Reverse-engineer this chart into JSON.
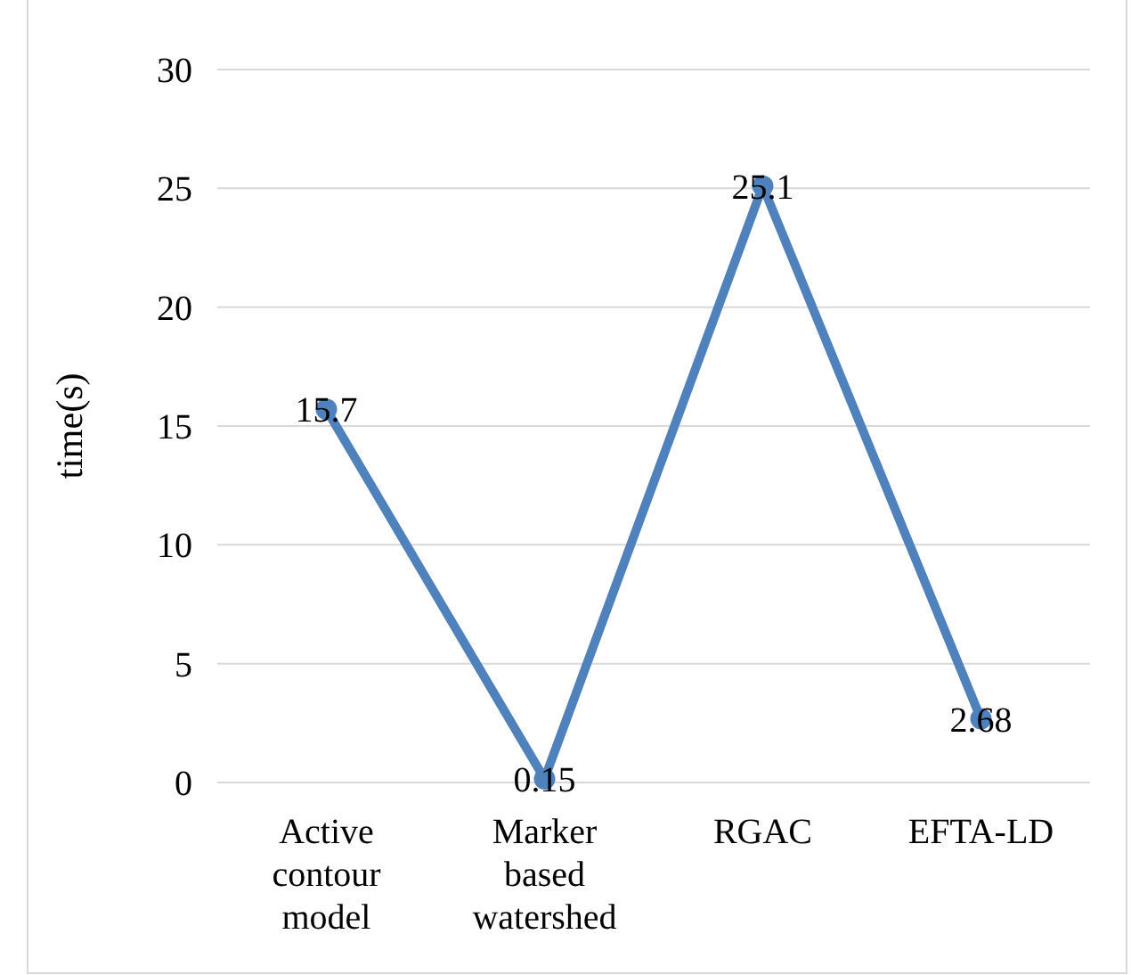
{
  "chart_data": {
    "type": "line",
    "ylabel": "time(s)",
    "categories": [
      "Active contour model",
      "Marker based watershed",
      "RGAC",
      "EFTA-LD"
    ],
    "series": [
      {
        "color": "#4f81bd",
        "values": [
          15.7,
          0.15,
          25.1,
          2.68
        ]
      }
    ],
    "ylim": [
      0,
      30
    ],
    "yticks": [
      0,
      5,
      10,
      15,
      20,
      25,
      30
    ],
    "grid": "y",
    "marker": "circle",
    "line_style": "solid",
    "data_labels": true
  }
}
